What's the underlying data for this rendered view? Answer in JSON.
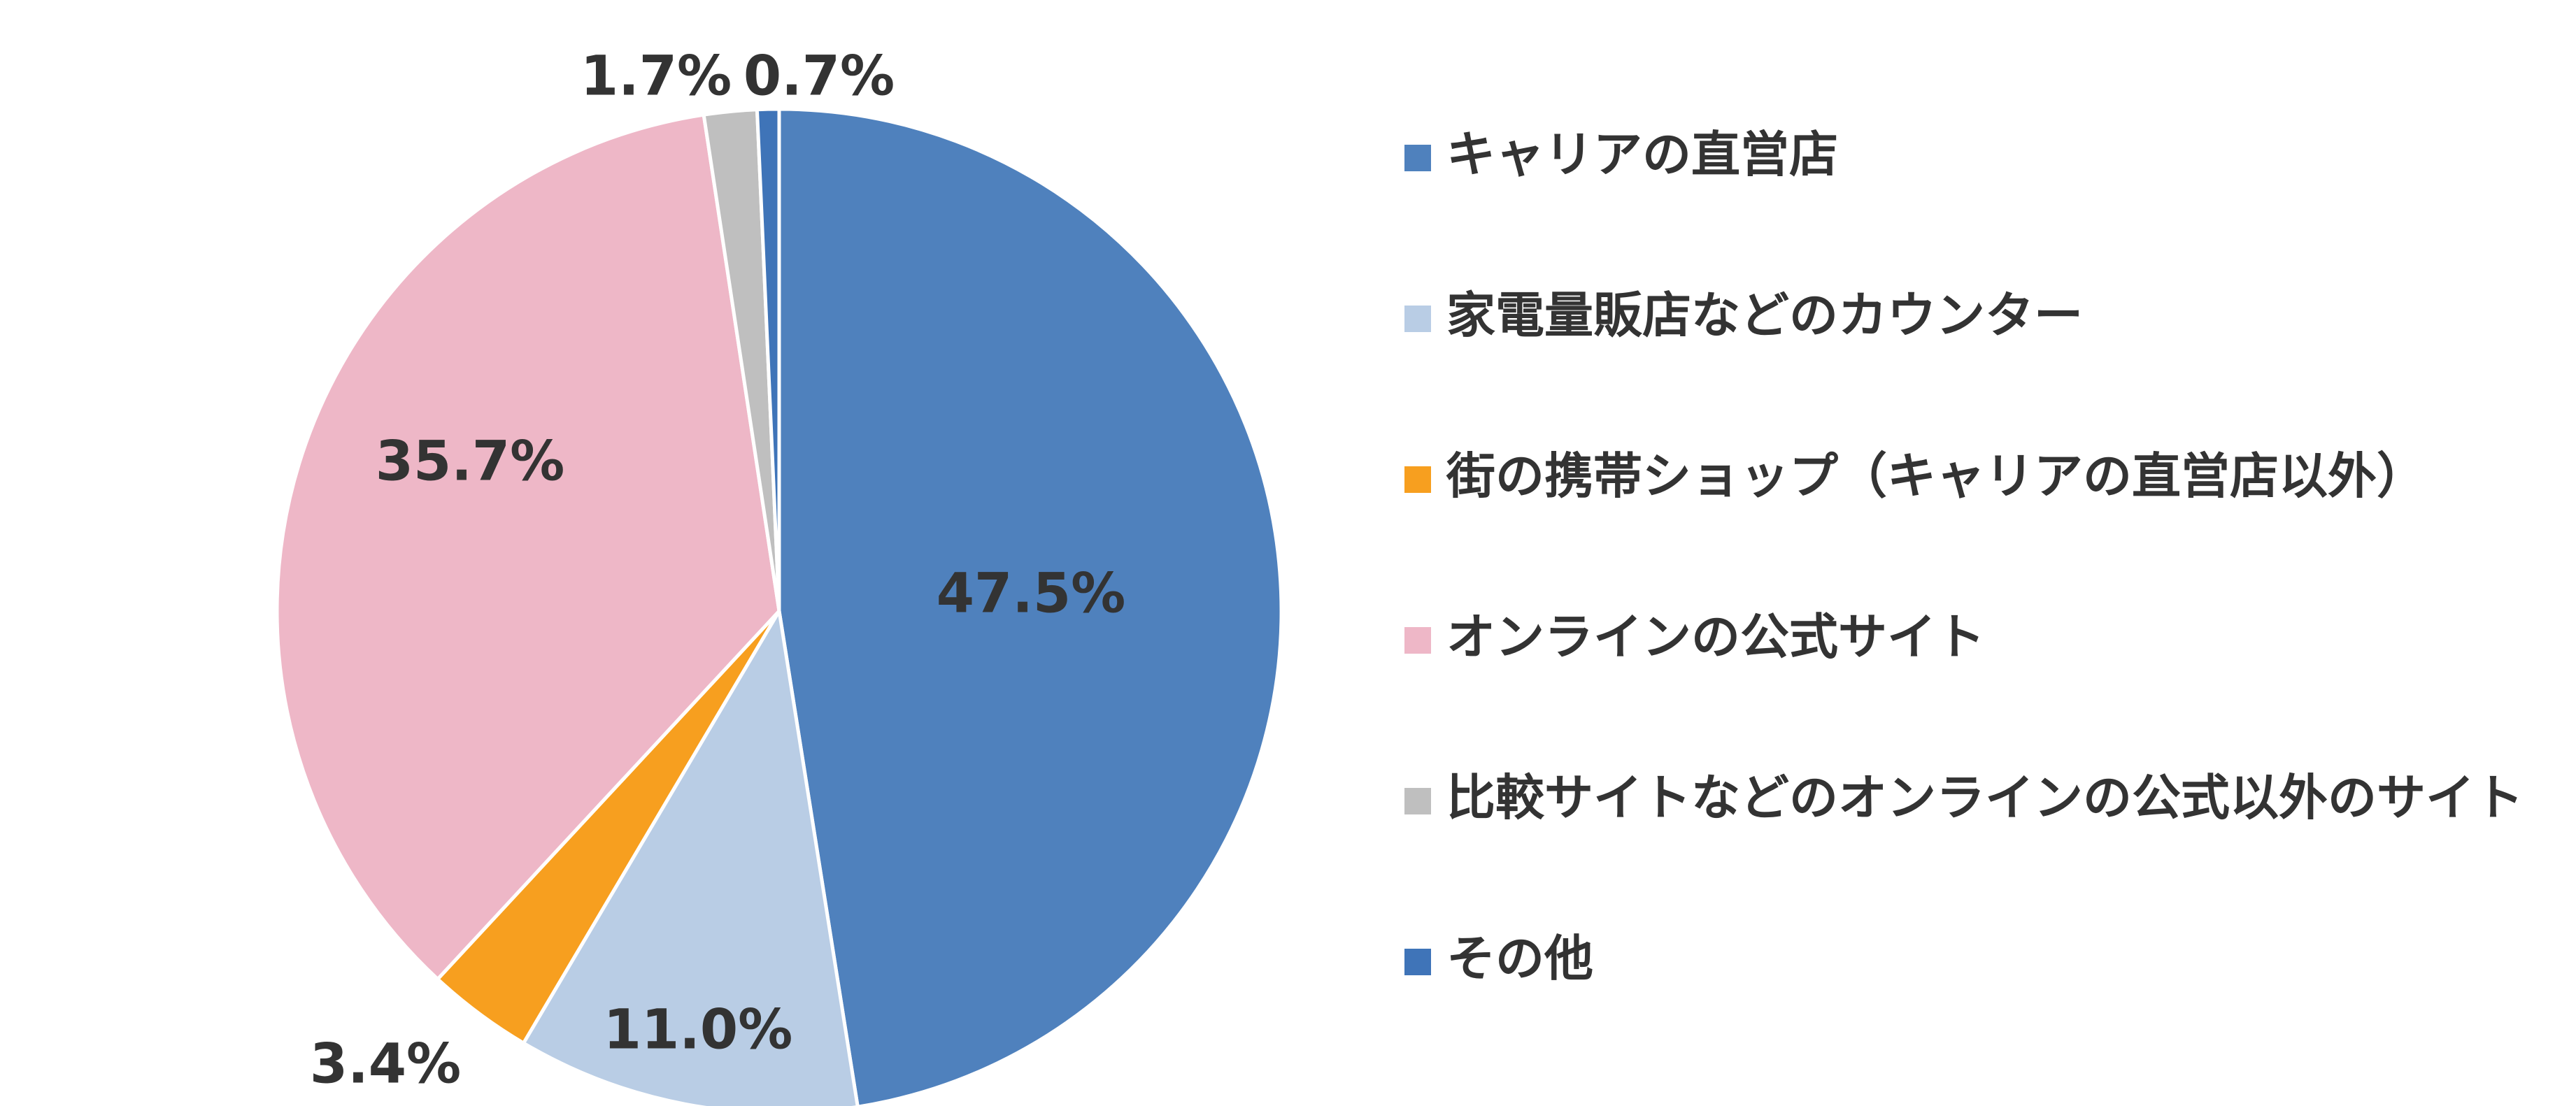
{
  "chart_data": {
    "type": "pie",
    "categories": [
      "キャリアの直営店",
      "家電量販店などのカウンター",
      "街の携帯ショップ（キャリアの直営店以外）",
      "オンラインの公式サイト",
      "比較サイトなどのオンラインの公式以外のサイト",
      "その他"
    ],
    "values": [
      47.5,
      11.0,
      3.4,
      35.7,
      1.7,
      0.7
    ],
    "value_labels": [
      "47.5%",
      "11.0%",
      "3.4%",
      "35.7%",
      "1.7%",
      "0.7%"
    ],
    "colors": [
      "#4F81BD",
      "#B9CDE5",
      "#F79F1F",
      "#EEB7C7",
      "#BFBFBF",
      "#3F74B8"
    ]
  }
}
